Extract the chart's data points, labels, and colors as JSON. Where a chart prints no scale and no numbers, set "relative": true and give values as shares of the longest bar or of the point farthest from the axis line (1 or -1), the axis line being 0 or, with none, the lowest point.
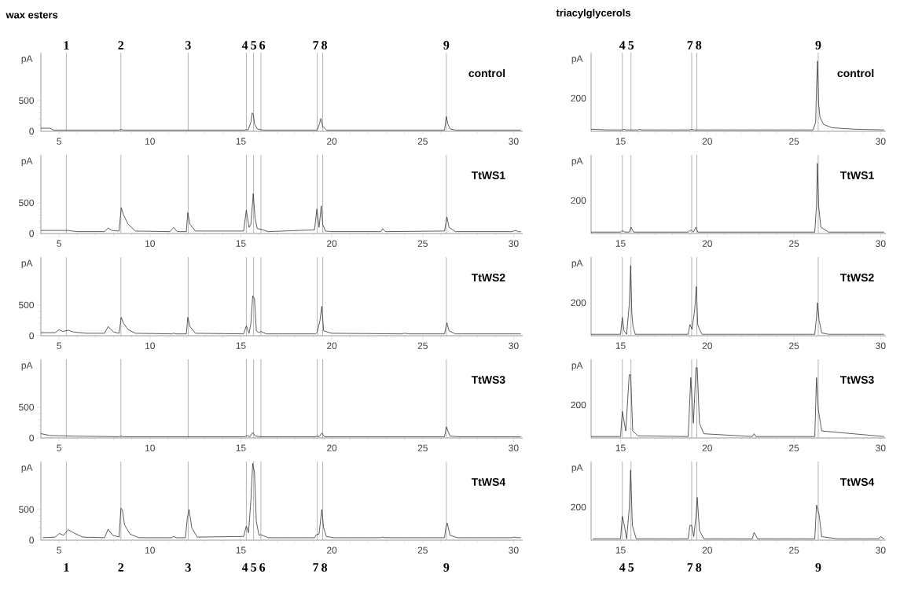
{
  "chart_data": [
    {
      "type": "line",
      "title": "wax esters",
      "ylabel": "pA",
      "color": "#333333",
      "xlim": [
        4.0,
        30.5
      ],
      "ylim": [
        0,
        1280
      ],
      "xticks": [
        5,
        10,
        15,
        20,
        25,
        30
      ],
      "yticks": [
        0,
        500
      ],
      "annotations": [
        "control",
        "1",
        "2",
        "3",
        "4",
        "5",
        "6",
        "7",
        "8",
        "9"
      ],
      "x": [
        4.0,
        4.5,
        4.7,
        5.5,
        8.3,
        8.4,
        8.55,
        15.2,
        15.3,
        15.4,
        15.55,
        15.62,
        15.68,
        15.75,
        15.9,
        16.2,
        19.2,
        19.32,
        19.4,
        19.5,
        19.7,
        26.2,
        26.3,
        26.38,
        26.5,
        26.8,
        30.4
      ],
      "values": [
        50,
        50,
        20,
        20,
        20,
        30,
        20,
        20,
        30,
        20,
        150,
        300,
        280,
        120,
        40,
        20,
        20,
        120,
        210,
        80,
        20,
        20,
        240,
        120,
        40,
        20,
        20
      ],
      "ref_lines": [
        {
          "axis": "x",
          "value": 5.4,
          "color": "#b4b4b4"
        },
        {
          "axis": "x",
          "value": 8.4,
          "color": "#b4b4b4"
        },
        {
          "axis": "x",
          "value": 12.1,
          "color": "#b4b4b4"
        },
        {
          "axis": "x",
          "value": 15.3,
          "color": "#b4b4b4"
        },
        {
          "axis": "x",
          "value": 15.7,
          "color": "#b4b4b4"
        },
        {
          "axis": "x",
          "value": 16.1,
          "color": "#b4b4b4"
        },
        {
          "axis": "x",
          "value": 19.2,
          "color": "#b4b4b4"
        },
        {
          "axis": "x",
          "value": 19.5,
          "color": "#b4b4b4"
        },
        {
          "axis": "x",
          "value": 26.3,
          "color": "#b4b4b4"
        }
      ]
    },
    {
      "type": "line",
      "title": "triacylglycerols",
      "ylabel": "pA",
      "color": "#333333",
      "xlim": [
        13.3,
        30.3
      ],
      "relative": true,
      "xticks": [
        15,
        20,
        25,
        30
      ],
      "annotations": [
        "control",
        "200",
        "4",
        "5",
        "7",
        "8",
        "9"
      ],
      "x": [
        13.3,
        14.2,
        15.1,
        15.2,
        15.3,
        16.0,
        16.1,
        16.2,
        19.0,
        19.1,
        19.2,
        26.1,
        26.25,
        26.3,
        26.36,
        26.42,
        26.5,
        26.7,
        27.2,
        28.5,
        30.2
      ],
      "values": [
        0.03,
        0.02,
        0.02,
        0.03,
        0.02,
        0.02,
        0.03,
        0.02,
        0.02,
        0.03,
        0.02,
        0.02,
        0.13,
        0.6,
        1,
        0.4,
        0.2,
        0.1,
        0.05,
        0.03,
        0.02
      ],
      "ref_lines": [
        {
          "axis": "x",
          "value": 15.1,
          "color": "#b4b4b4"
        },
        {
          "axis": "x",
          "value": 15.6,
          "color": "#b4b4b4"
        },
        {
          "axis": "x",
          "value": 19.1,
          "color": "#b4b4b4"
        },
        {
          "axis": "x",
          "value": 19.4,
          "color": "#b4b4b4"
        },
        {
          "axis": "x",
          "value": 26.4,
          "color": "#b4b4b4"
        }
      ]
    },
    {
      "type": "line",
      "ylabel": "pA",
      "color": "#333333",
      "xlim": [
        4.0,
        30.5
      ],
      "ylim": [
        0,
        1280
      ],
      "xticks": [
        5,
        10,
        15,
        20,
        25,
        30
      ],
      "yticks": [
        0,
        500
      ],
      "annotations": [
        "TtWS1"
      ],
      "x": [
        4.0,
        5.5,
        6.0,
        7.5,
        7.7,
        7.9,
        8.3,
        8.42,
        8.55,
        8.8,
        9.2,
        11.1,
        11.3,
        11.5,
        12.0,
        12.08,
        12.2,
        12.5,
        15.15,
        15.3,
        15.45,
        15.55,
        15.68,
        15.78,
        15.9,
        16.1,
        16.5,
        19.05,
        19.18,
        19.3,
        19.42,
        19.5,
        19.65,
        20.0,
        22.7,
        22.8,
        22.95,
        26.2,
        26.33,
        26.45,
        26.8,
        29.9,
        30.1,
        30.25,
        30.4
      ],
      "values": [
        50,
        50,
        30,
        30,
        90,
        50,
        40,
        420,
        300,
        150,
        40,
        30,
        100,
        30,
        30,
        340,
        150,
        40,
        40,
        380,
        100,
        150,
        650,
        250,
        80,
        70,
        30,
        60,
        400,
        100,
        450,
        150,
        40,
        30,
        30,
        80,
        30,
        40,
        270,
        100,
        30,
        30,
        50,
        30,
        30
      ],
      "ref_lines": [
        {
          "axis": "x",
          "value": 5.4,
          "color": "#b4b4b4"
        },
        {
          "axis": "x",
          "value": 8.4,
          "color": "#b4b4b4"
        },
        {
          "axis": "x",
          "value": 12.1,
          "color": "#b4b4b4"
        },
        {
          "axis": "x",
          "value": 15.3,
          "color": "#b4b4b4"
        },
        {
          "axis": "x",
          "value": 15.7,
          "color": "#b4b4b4"
        },
        {
          "axis": "x",
          "value": 16.1,
          "color": "#b4b4b4"
        },
        {
          "axis": "x",
          "value": 19.2,
          "color": "#b4b4b4"
        },
        {
          "axis": "x",
          "value": 19.5,
          "color": "#b4b4b4"
        },
        {
          "axis": "x",
          "value": 26.3,
          "color": "#b4b4b4"
        }
      ]
    },
    {
      "type": "line",
      "ylabel": "pA",
      "color": "#333333",
      "xlim": [
        13.3,
        30.3
      ],
      "relative": true,
      "xticks": [
        15,
        20,
        25,
        30
      ],
      "annotations": [
        "TtWS1",
        "200"
      ],
      "x": [
        13.3,
        15.0,
        15.1,
        15.25,
        15.5,
        15.6,
        15.75,
        16.5,
        18.9,
        19.05,
        19.2,
        19.35,
        19.45,
        19.6,
        26.2,
        26.3,
        26.35,
        26.42,
        26.55,
        27.0,
        30.2
      ],
      "values": [
        0.02,
        0.02,
        0.04,
        0.02,
        0.02,
        0.09,
        0.02,
        0.02,
        0.02,
        0.05,
        0.02,
        0.09,
        0.02,
        0.02,
        0.02,
        0.4,
        1,
        0.4,
        0.09,
        0.02,
        0.02
      ],
      "ref_lines": [
        {
          "axis": "x",
          "value": 15.1,
          "color": "#b4b4b4"
        },
        {
          "axis": "x",
          "value": 15.6,
          "color": "#b4b4b4"
        },
        {
          "axis": "x",
          "value": 19.1,
          "color": "#b4b4b4"
        },
        {
          "axis": "x",
          "value": 19.4,
          "color": "#b4b4b4"
        },
        {
          "axis": "x",
          "value": 26.4,
          "color": "#b4b4b4"
        }
      ]
    },
    {
      "type": "line",
      "ylabel": "pA",
      "color": "#333333",
      "xlim": [
        4.0,
        30.5
      ],
      "ylim": [
        0,
        1280
      ],
      "xticks": [
        5,
        10,
        15,
        20,
        25,
        30
      ],
      "yticks": [
        0,
        500
      ],
      "annotations": [
        "TtWS2"
      ],
      "x": [
        4.0,
        4.8,
        5.0,
        5.2,
        5.5,
        5.8,
        6.5,
        7.5,
        7.7,
        8.0,
        8.3,
        8.42,
        8.55,
        8.8,
        9.2,
        11.2,
        11.3,
        11.45,
        12.0,
        12.08,
        12.2,
        12.5,
        15.15,
        15.3,
        15.45,
        15.55,
        15.65,
        15.75,
        15.85,
        16.0,
        16.1,
        16.4,
        19.1,
        19.2,
        19.35,
        19.45,
        19.55,
        20.0,
        23.8,
        24.0,
        24.3,
        26.2,
        26.33,
        26.45,
        26.8,
        30.4
      ],
      "values": [
        50,
        50,
        100,
        70,
        90,
        60,
        40,
        40,
        150,
        60,
        40,
        300,
        200,
        100,
        40,
        30,
        40,
        30,
        30,
        300,
        150,
        40,
        30,
        160,
        40,
        200,
        650,
        600,
        80,
        50,
        70,
        30,
        30,
        60,
        250,
        480,
        80,
        40,
        30,
        40,
        30,
        30,
        210,
        80,
        30,
        30
      ],
      "ref_lines": [
        {
          "axis": "x",
          "value": 5.4,
          "color": "#b4b4b4"
        },
        {
          "axis": "x",
          "value": 8.4,
          "color": "#b4b4b4"
        },
        {
          "axis": "x",
          "value": 12.1,
          "color": "#b4b4b4"
        },
        {
          "axis": "x",
          "value": 15.3,
          "color": "#b4b4b4"
        },
        {
          "axis": "x",
          "value": 15.7,
          "color": "#b4b4b4"
        },
        {
          "axis": "x",
          "value": 16.1,
          "color": "#b4b4b4"
        },
        {
          "axis": "x",
          "value": 19.2,
          "color": "#b4b4b4"
        },
        {
          "axis": "x",
          "value": 19.5,
          "color": "#b4b4b4"
        },
        {
          "axis": "x",
          "value": 26.3,
          "color": "#b4b4b4"
        }
      ]
    },
    {
      "type": "line",
      "ylabel": "pA",
      "color": "#333333",
      "xlim": [
        13.3,
        30.3
      ],
      "relative": true,
      "xticks": [
        15,
        20,
        25,
        30
      ],
      "annotations": [
        "TtWS2",
        "200"
      ],
      "x": [
        13.3,
        15.0,
        15.1,
        15.2,
        15.35,
        15.5,
        15.58,
        15.65,
        15.72,
        15.85,
        18.9,
        19.0,
        19.12,
        19.28,
        19.37,
        19.45,
        19.55,
        19.7,
        26.2,
        26.3,
        26.36,
        26.45,
        26.6,
        27.0,
        30.2
      ],
      "values": [
        0.02,
        0.02,
        0.26,
        0.07,
        0.02,
        0.44,
        1,
        0.31,
        0.13,
        0.02,
        0.02,
        0.16,
        0.09,
        0.38,
        0.7,
        0.16,
        0.09,
        0.02,
        0.02,
        0.27,
        0.47,
        0.22,
        0.04,
        0.02,
        0.02
      ],
      "ref_lines": [
        {
          "axis": "x",
          "value": 15.1,
          "color": "#b4b4b4"
        },
        {
          "axis": "x",
          "value": 15.6,
          "color": "#b4b4b4"
        },
        {
          "axis": "x",
          "value": 19.1,
          "color": "#b4b4b4"
        },
        {
          "axis": "x",
          "value": 19.4,
          "color": "#b4b4b4"
        },
        {
          "axis": "x",
          "value": 26.4,
          "color": "#b4b4b4"
        }
      ]
    },
    {
      "type": "line",
      "ylabel": "pA",
      "color": "#333333",
      "xlim": [
        4.0,
        30.5
      ],
      "ylim": [
        0,
        1280
      ],
      "xticks": [
        5,
        10,
        15,
        20,
        25,
        30
      ],
      "yticks": [
        0,
        500
      ],
      "annotations": [
        "TtWS3"
      ],
      "x": [
        4.0,
        4.5,
        5.8,
        8.3,
        8.4,
        8.55,
        15.2,
        15.35,
        15.5,
        15.65,
        15.8,
        16.1,
        19.1,
        19.2,
        19.3,
        19.45,
        19.6,
        26.2,
        26.3,
        26.38,
        26.5,
        27.0,
        30.4
      ],
      "values": [
        70,
        40,
        30,
        20,
        30,
        20,
        20,
        40,
        20,
        90,
        30,
        20,
        20,
        30,
        20,
        80,
        20,
        20,
        180,
        120,
        30,
        20,
        20
      ],
      "ref_lines": [
        {
          "axis": "x",
          "value": 5.4,
          "color": "#b4b4b4"
        },
        {
          "axis": "x",
          "value": 8.4,
          "color": "#b4b4b4"
        },
        {
          "axis": "x",
          "value": 12.1,
          "color": "#b4b4b4"
        },
        {
          "axis": "x",
          "value": 15.3,
          "color": "#b4b4b4"
        },
        {
          "axis": "x",
          "value": 15.7,
          "color": "#b4b4b4"
        },
        {
          "axis": "x",
          "value": 16.1,
          "color": "#b4b4b4"
        },
        {
          "axis": "x",
          "value": 19.2,
          "color": "#b4b4b4"
        },
        {
          "axis": "x",
          "value": 19.5,
          "color": "#b4b4b4"
        },
        {
          "axis": "x",
          "value": 26.3,
          "color": "#b4b4b4"
        }
      ]
    },
    {
      "type": "line",
      "ylabel": "pA",
      "color": "#333333",
      "xlim": [
        13.3,
        30.3
      ],
      "relative": true,
      "xticks": [
        15,
        20,
        25,
        30
      ],
      "annotations": [
        "TtWS3",
        "200"
      ],
      "x": [
        13.3,
        15.0,
        15.1,
        15.3,
        15.5,
        15.58,
        15.7,
        16.0,
        18.9,
        19.05,
        19.2,
        19.35,
        19.42,
        19.55,
        19.8,
        22.6,
        22.7,
        22.8,
        26.2,
        26.3,
        26.4,
        26.6,
        30.2
      ],
      "values": [
        0.02,
        0.02,
        0.38,
        0.1,
        0.9,
        0.9,
        0.1,
        0.03,
        0.02,
        0.86,
        0.21,
        1,
        1,
        0.21,
        0.06,
        0.02,
        0.06,
        0.02,
        0.02,
        0.86,
        0.41,
        0.1,
        0.02
      ],
      "ref_lines": [
        {
          "axis": "x",
          "value": 15.1,
          "color": "#b4b4b4"
        },
        {
          "axis": "x",
          "value": 15.6,
          "color": "#b4b4b4"
        },
        {
          "axis": "x",
          "value": 19.1,
          "color": "#b4b4b4"
        },
        {
          "axis": "x",
          "value": 19.4,
          "color": "#b4b4b4"
        },
        {
          "axis": "x",
          "value": 26.4,
          "color": "#b4b4b4"
        }
      ]
    },
    {
      "type": "line",
      "ylabel": "pA",
      "color": "#333333",
      "xlim": [
        4.0,
        30.5
      ],
      "ylim": [
        0,
        1280
      ],
      "xticks": [
        5,
        10,
        15,
        20,
        25,
        30
      ],
      "yticks": [
        0,
        500
      ],
      "annotations": [
        "TtWS4",
        "1",
        "2",
        "3",
        "4",
        "5",
        "6",
        "7",
        "8",
        "9"
      ],
      "x": [
        4.1,
        4.8,
        5.0,
        5.25,
        5.5,
        5.8,
        6.3,
        7.5,
        7.7,
        7.95,
        8.3,
        8.4,
        8.48,
        8.6,
        8.9,
        9.4,
        11.2,
        11.3,
        11.45,
        11.95,
        12.05,
        12.15,
        12.3,
        12.6,
        15.15,
        15.3,
        15.42,
        15.55,
        15.65,
        15.75,
        15.85,
        16.0,
        16.1,
        16.5,
        19.05,
        19.15,
        19.3,
        19.45,
        19.55,
        19.7,
        20.1,
        22.7,
        22.8,
        22.9,
        26.2,
        26.27,
        26.35,
        26.5,
        26.9,
        29.9,
        30.0,
        30.2,
        30.4
      ],
      "values": [
        40,
        50,
        110,
        80,
        170,
        120,
        50,
        40,
        180,
        80,
        50,
        520,
        500,
        250,
        100,
        40,
        40,
        60,
        40,
        40,
        350,
        500,
        200,
        50,
        60,
        230,
        120,
        650,
        1250,
        1100,
        300,
        80,
        90,
        40,
        40,
        90,
        100,
        500,
        200,
        60,
        40,
        40,
        50,
        40,
        40,
        200,
        280,
        80,
        40,
        40,
        50,
        40,
        40
      ],
      "ref_lines": [
        {
          "axis": "x",
          "value": 5.4,
          "color": "#b4b4b4"
        },
        {
          "axis": "x",
          "value": 8.4,
          "color": "#b4b4b4"
        },
        {
          "axis": "x",
          "value": 12.1,
          "color": "#b4b4b4"
        },
        {
          "axis": "x",
          "value": 15.3,
          "color": "#b4b4b4"
        },
        {
          "axis": "x",
          "value": 15.7,
          "color": "#b4b4b4"
        },
        {
          "axis": "x",
          "value": 16.1,
          "color": "#b4b4b4"
        },
        {
          "axis": "x",
          "value": 19.2,
          "color": "#b4b4b4"
        },
        {
          "axis": "x",
          "value": 19.5,
          "color": "#b4b4b4"
        },
        {
          "axis": "x",
          "value": 26.3,
          "color": "#b4b4b4"
        }
      ]
    },
    {
      "type": "line",
      "ylabel": "pA",
      "color": "#333333",
      "xlim": [
        13.3,
        30.3
      ],
      "relative": true,
      "xticks": [
        15,
        20,
        25,
        30
      ],
      "annotations": [
        "TtWS4",
        "200",
        "4",
        "5",
        "7",
        "8",
        "9"
      ],
      "x": [
        13.4,
        14.3,
        14.6,
        15.0,
        15.1,
        15.2,
        15.35,
        15.5,
        15.58,
        15.68,
        15.9,
        18.9,
        19.0,
        19.1,
        19.22,
        19.35,
        19.42,
        19.55,
        19.8,
        22.6,
        22.7,
        22.9,
        26.2,
        26.3,
        26.45,
        26.6,
        27.5,
        29.9,
        30.0,
        30.2
      ],
      "values": [
        0.02,
        0.02,
        0.02,
        0.02,
        0.34,
        0.23,
        0.02,
        0.45,
        1,
        0.21,
        0.02,
        0.02,
        0.21,
        0.21,
        0.05,
        0.34,
        0.61,
        0.14,
        0.02,
        0.02,
        0.11,
        0.02,
        0.02,
        0.5,
        0.36,
        0.05,
        0.02,
        0.02,
        0.05,
        0.02
      ],
      "ref_lines": [
        {
          "axis": "x",
          "value": 15.1,
          "color": "#b4b4b4"
        },
        {
          "axis": "x",
          "value": 15.6,
          "color": "#b4b4b4"
        },
        {
          "axis": "x",
          "value": 19.1,
          "color": "#b4b4b4"
        },
        {
          "axis": "x",
          "value": 19.4,
          "color": "#b4b4b4"
        },
        {
          "axis": "x",
          "value": 26.4,
          "color": "#b4b4b4"
        }
      ]
    }
  ]
}
